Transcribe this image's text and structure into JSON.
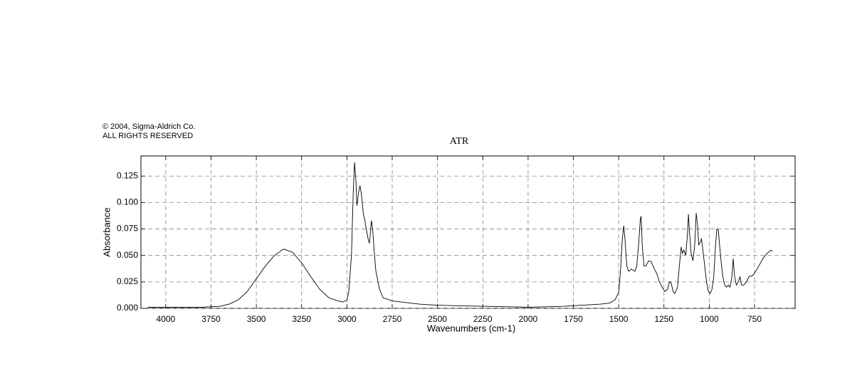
{
  "chart_data": {
    "type": "line",
    "title": "ATR",
    "annotations": [
      "© 2004, Sigma-Aldrich Co.",
      "ALL RIGHTS RESERVED"
    ],
    "xlabel": "Wavenumbers (cm-1)",
    "ylabel": "Absorbance",
    "color": "#000000",
    "grid": true,
    "xlim": [
      4137,
      526
    ],
    "ylim": [
      0,
      0.144
    ],
    "xticks": [
      4000,
      3750,
      3500,
      3250,
      3000,
      2750,
      2500,
      2250,
      2000,
      1750,
      1500,
      1250,
      1000,
      750
    ],
    "yticks": [
      {
        "value": 0,
        "label": "0.000"
      },
      {
        "value": 0.025,
        "label": "0.025"
      },
      {
        "value": 0.05,
        "label": "0.050"
      },
      {
        "value": 0.075,
        "label": "0.075"
      },
      {
        "value": 0.1,
        "label": "0.100"
      },
      {
        "value": 0.125,
        "label": "0.125"
      }
    ],
    "x": [
      4100,
      4000,
      3800,
      3700,
      3650,
      3600,
      3550,
      3500,
      3450,
      3400,
      3350,
      3300,
      3250,
      3200,
      3150,
      3100,
      3050,
      3020,
      3000,
      2990,
      2975,
      2965,
      2958,
      2950,
      2945,
      2935,
      2928,
      2920,
      2910,
      2900,
      2890,
      2880,
      2875,
      2870,
      2865,
      2858,
      2850,
      2840,
      2820,
      2800,
      2750,
      2700,
      2600,
      2500,
      2400,
      2250,
      2100,
      2000,
      1900,
      1800,
      1700,
      1600,
      1550,
      1520,
      1500,
      1490,
      1480,
      1472,
      1465,
      1455,
      1445,
      1430,
      1410,
      1400,
      1390,
      1380,
      1376,
      1370,
      1360,
      1350,
      1335,
      1320,
      1305,
      1290,
      1275,
      1260,
      1245,
      1230,
      1220,
      1210,
      1200,
      1190,
      1175,
      1165,
      1155,
      1148,
      1140,
      1130,
      1120,
      1115,
      1108,
      1100,
      1090,
      1080,
      1072,
      1065,
      1058,
      1050,
      1043,
      1035,
      1025,
      1015,
      1005,
      995,
      985,
      975,
      965,
      958,
      950,
      943,
      935,
      925,
      915,
      905,
      895,
      885,
      875,
      868,
      860,
      850,
      840,
      830,
      822,
      810,
      795,
      780,
      760,
      740,
      720,
      700,
      680,
      660,
      650
    ],
    "values": [
      0.001,
      0.001,
      0.001,
      0.002,
      0.004,
      0.008,
      0.016,
      0.028,
      0.04,
      0.05,
      0.056,
      0.053,
      0.043,
      0.03,
      0.018,
      0.01,
      0.007,
      0.006,
      0.008,
      0.015,
      0.05,
      0.11,
      0.138,
      0.12,
      0.097,
      0.11,
      0.116,
      0.108,
      0.09,
      0.082,
      0.072,
      0.063,
      0.062,
      0.072,
      0.083,
      0.075,
      0.055,
      0.035,
      0.018,
      0.01,
      0.007,
      0.006,
      0.004,
      0.003,
      0.0025,
      0.002,
      0.0015,
      0.001,
      0.0015,
      0.002,
      0.003,
      0.004,
      0.005,
      0.008,
      0.015,
      0.035,
      0.065,
      0.078,
      0.065,
      0.04,
      0.035,
      0.037,
      0.035,
      0.04,
      0.06,
      0.085,
      0.087,
      0.06,
      0.04,
      0.04,
      0.045,
      0.044,
      0.038,
      0.033,
      0.025,
      0.02,
      0.016,
      0.018,
      0.025,
      0.024,
      0.016,
      0.014,
      0.02,
      0.04,
      0.058,
      0.052,
      0.055,
      0.05,
      0.07,
      0.089,
      0.07,
      0.052,
      0.045,
      0.06,
      0.09,
      0.08,
      0.06,
      0.062,
      0.066,
      0.055,
      0.04,
      0.025,
      0.016,
      0.014,
      0.018,
      0.03,
      0.06,
      0.075,
      0.074,
      0.06,
      0.045,
      0.03,
      0.022,
      0.02,
      0.022,
      0.02,
      0.03,
      0.047,
      0.03,
      0.022,
      0.025,
      0.03,
      0.022,
      0.022,
      0.025,
      0.03,
      0.031,
      0.036,
      0.042,
      0.048,
      0.052,
      0.055,
      0.054
    ]
  }
}
